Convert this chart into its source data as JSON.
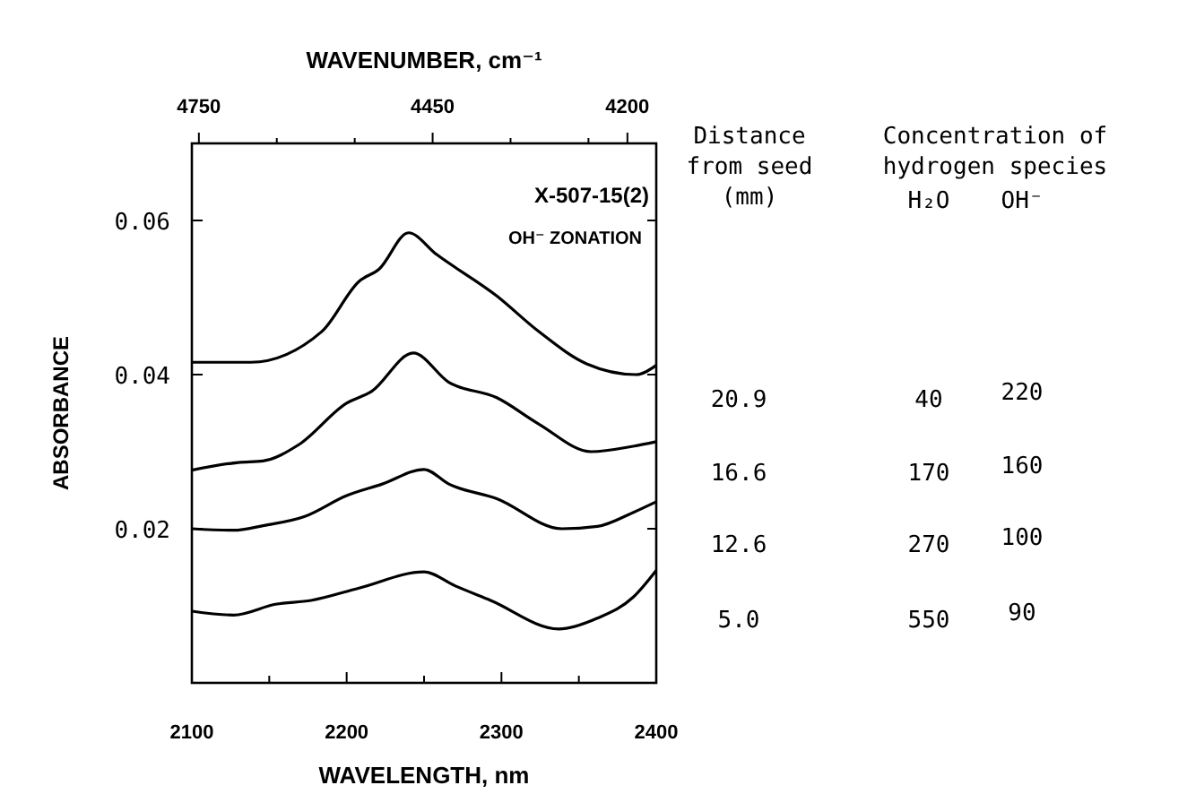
{
  "chart_data": {
    "type": "line",
    "xlabel": "WAVELENGTH, nm",
    "ylabel": "ABSORBANCE",
    "x2label": "WAVENUMBER, cm⁻¹",
    "xlim": [
      2100,
      2400
    ],
    "xticks": [
      2100,
      {
        "value": 2150,
        "label": null
      },
      2200,
      {
        "value": 2250,
        "label": null
      },
      2300,
      {
        "value": 2350,
        "label": null
      },
      2400
    ],
    "x2lim": [
      4759,
      4163
    ],
    "x2ticks": [
      4750,
      {
        "value": 4650,
        "label": null
      },
      {
        "value": 4550,
        "label": null
      },
      4450,
      {
        "value": 4350,
        "label": null
      },
      {
        "value": 4250,
        "label": null
      },
      4200
    ],
    "ylim": [
      0,
      0.07
    ],
    "yticks": [
      0.02,
      0.04,
      0.06
    ],
    "grid": false,
    "series": [
      {
        "name": "20.9",
        "color": "#000000",
        "x": [
          2100,
          2138,
          2184,
          2208,
          2221,
          2240,
          2258,
          2297,
          2324,
          2355,
          2387,
          2400
        ],
        "values": [
          0.0416,
          0.0416,
          0.0456,
          0.0521,
          0.0537,
          0.0584,
          0.0556,
          0.0502,
          0.0456,
          0.0414,
          0.04,
          0.0412
        ]
      },
      {
        "name": "16.6",
        "color": "#000000",
        "x": [
          2100,
          2130,
          2146,
          2169,
          2200,
          2216,
          2243,
          2266,
          2297,
          2324,
          2358,
          2385,
          2400
        ],
        "values": [
          0.0276,
          0.0286,
          0.0288,
          0.0309,
          0.0363,
          0.0378,
          0.0428,
          0.039,
          0.037,
          0.0336,
          0.03,
          0.0307,
          0.0313
        ]
      },
      {
        "name": "12.6",
        "color": "#000000",
        "x": [
          2100,
          2127,
          2146,
          2173,
          2200,
          2223,
          2250,
          2266,
          2297,
          2339,
          2362,
          2385,
          2400
        ],
        "values": [
          0.02,
          0.0198,
          0.0204,
          0.0216,
          0.0243,
          0.0258,
          0.0277,
          0.0258,
          0.0239,
          0.02,
          0.0203,
          0.0221,
          0.0235
        ]
      },
      {
        "name": "5.0",
        "color": "#000000",
        "x": [
          2100,
          2127,
          2154,
          2177,
          2208,
          2250,
          2270,
          2293,
          2337,
          2362,
          2385,
          2400
        ],
        "values": [
          0.0093,
          0.0088,
          0.0102,
          0.0107,
          0.0123,
          0.0144,
          0.0126,
          0.0107,
          0.007,
          0.0084,
          0.0111,
          0.0146
        ]
      }
    ],
    "annotations": [
      "X-507-15(2)",
      "OH⁻ ZONATION",
      "Distance\nfrom seed\n(mm)",
      "Concentration of\nhydrogen species",
      "H₂O",
      "OH⁻",
      "40",
      "220",
      "170",
      "160",
      "270",
      "100",
      "550",
      "90"
    ]
  }
}
